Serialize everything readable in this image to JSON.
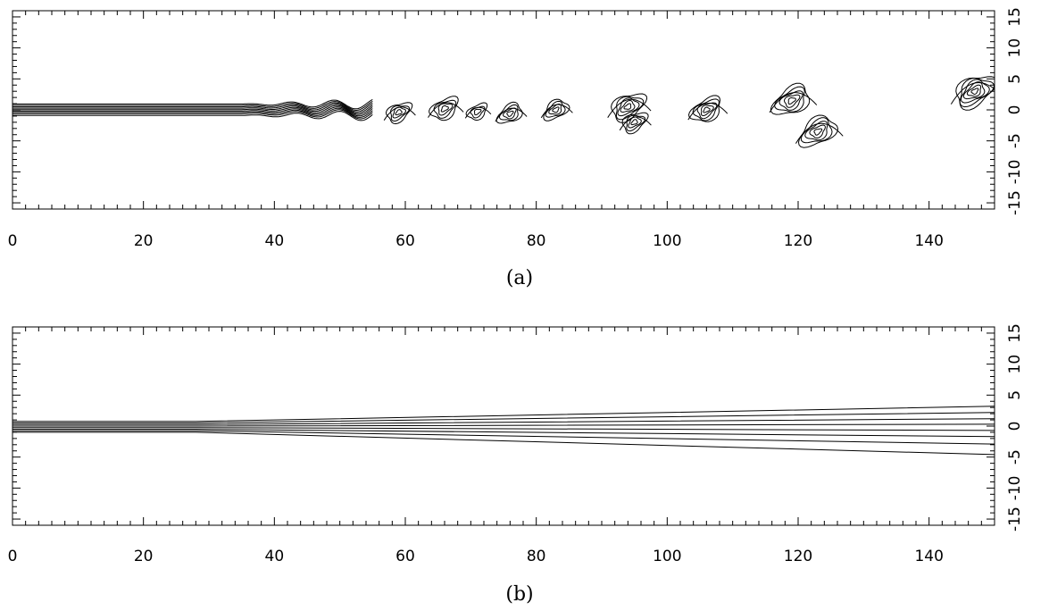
{
  "chart_data": [
    {
      "type": "contour",
      "caption": "(a)",
      "xlim": [
        0,
        150
      ],
      "ylim": [
        -16,
        16
      ],
      "x_ticks": [
        0,
        20,
        40,
        60,
        80,
        100,
        120,
        140
      ],
      "x_tick_labels": [
        "0",
        "20",
        "40",
        "60",
        "80",
        "100",
        "120",
        "140"
      ],
      "y_ticks": [
        -15,
        -10,
        -5,
        0,
        5,
        10,
        15
      ],
      "y_tick_labels": [
        "-15",
        "-10",
        "-5",
        "0",
        "5",
        "10",
        "15"
      ],
      "jet": {
        "x_start": 0,
        "x_laminar_end": 35,
        "x_roll_up": 55,
        "half_width": 0.9
      },
      "vortices": [
        {
          "x": 59,
          "y": -0.4,
          "r": 1.6,
          "levels": 4
        },
        {
          "x": 66,
          "y": 0.2,
          "r": 1.8,
          "levels": 4
        },
        {
          "x": 71,
          "y": -0.3,
          "r": 1.3,
          "levels": 3
        },
        {
          "x": 76,
          "y": -0.6,
          "r": 1.6,
          "levels": 4
        },
        {
          "x": 83,
          "y": 0.0,
          "r": 1.6,
          "levels": 4
        },
        {
          "x": 94,
          "y": 0.5,
          "r": 2.2,
          "levels": 5
        },
        {
          "x": 95,
          "y": -2.0,
          "r": 1.6,
          "levels": 4
        },
        {
          "x": 106,
          "y": 0.0,
          "r": 2.0,
          "levels": 5
        },
        {
          "x": 119,
          "y": 1.5,
          "r": 2.4,
          "levels": 5
        },
        {
          "x": 123,
          "y": -3.5,
          "r": 2.4,
          "levels": 5
        },
        {
          "x": 147,
          "y": 3.0,
          "r": 2.6,
          "levels": 6
        }
      ]
    },
    {
      "type": "line",
      "caption": "(b)",
      "xlim": [
        0,
        150
      ],
      "ylim": [
        -16,
        16
      ],
      "x_ticks": [
        0,
        20,
        40,
        60,
        80,
        100,
        120,
        140
      ],
      "x_tick_labels": [
        "0",
        "20",
        "40",
        "60",
        "80",
        "100",
        "120",
        "140"
      ],
      "y_ticks": [
        -15,
        -10,
        -5,
        0,
        5,
        10,
        15
      ],
      "y_tick_labels": [
        "-15",
        "-10",
        "-5",
        "0",
        "5",
        "10",
        "15"
      ],
      "spread_start_x": 28,
      "series": [
        {
          "y_start": 0.75,
          "y_end": 3.2
        },
        {
          "y_start": 0.5,
          "y_end": 2.2
        },
        {
          "y_start": 0.25,
          "y_end": 1.2
        },
        {
          "y_start": 0.0,
          "y_end": 0.3
        },
        {
          "y_start": -0.25,
          "y_end": -0.7
        },
        {
          "y_start": -0.5,
          "y_end": -1.7
        },
        {
          "y_start": -0.75,
          "y_end": -2.9
        },
        {
          "y_start": -1.0,
          "y_end": -4.6
        }
      ]
    }
  ]
}
